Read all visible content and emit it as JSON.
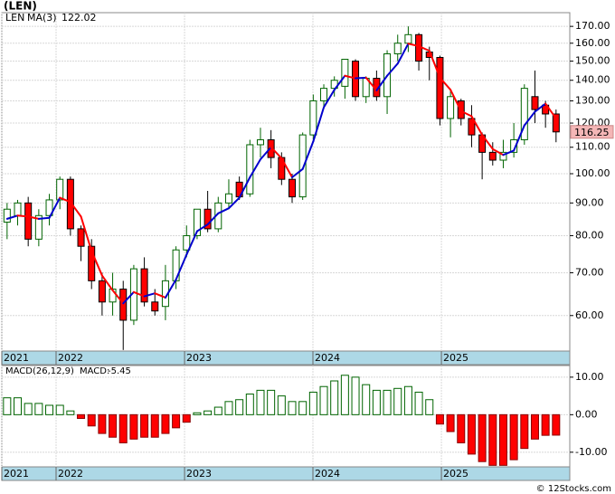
{
  "title": "(LEN)",
  "footer": "© 12Stocks.com",
  "chart_data": [
    {
      "type": "candlestick",
      "symbol": "LEN",
      "ma_name": "MA(3)",
      "x": [
        0,
        1,
        2,
        3,
        4,
        5,
        6,
        7,
        8,
        9,
        10,
        11,
        12,
        13,
        14,
        15,
        16,
        17,
        18,
        19,
        20,
        21,
        22,
        23,
        24,
        25,
        26,
        27,
        28,
        29,
        30,
        31,
        32,
        33,
        34,
        35,
        36,
        37,
        38,
        39,
        40,
        41,
        42,
        43,
        44,
        45,
        46,
        47,
        48,
        49,
        50,
        51,
        52
      ],
      "open": [
        84,
        86,
        90,
        79,
        86,
        91,
        98,
        82,
        77,
        68,
        63,
        66,
        59,
        71,
        63,
        62,
        68,
        76,
        80,
        88,
        82,
        90,
        97,
        93,
        111,
        113,
        106,
        98,
        92,
        115,
        130,
        136,
        137,
        150,
        132,
        141,
        132,
        154,
        160,
        165,
        155,
        152,
        122,
        130,
        122,
        115,
        108,
        105,
        108,
        113,
        132,
        128,
        124
      ],
      "high": [
        90,
        91,
        92,
        88,
        93,
        99,
        99,
        83,
        79,
        70,
        70,
        68,
        72,
        74,
        66,
        72,
        77,
        83,
        88,
        94,
        92,
        98,
        99,
        113,
        118,
        117,
        108,
        100,
        116,
        133,
        138,
        142,
        151,
        151,
        142,
        145,
        156,
        165,
        170,
        166,
        158,
        153,
        135,
        131,
        128,
        116,
        112,
        113,
        120,
        138,
        145,
        130,
        126
      ],
      "low": [
        79,
        83,
        77,
        77,
        83,
        88,
        80,
        73,
        66,
        60,
        60,
        53,
        58,
        62,
        60,
        59,
        66,
        74,
        79,
        81,
        81,
        88,
        91,
        92,
        106,
        102,
        96,
        90,
        91,
        113,
        127,
        132,
        131,
        130,
        129,
        130,
        124,
        150,
        155,
        145,
        140,
        119,
        114,
        119,
        110,
        98,
        103,
        102,
        106,
        111,
        120,
        118,
        112
      ],
      "close": [
        88,
        90,
        79,
        86,
        91,
        98,
        82,
        77,
        68,
        63,
        66,
        59,
        71,
        63,
        61,
        68,
        76,
        80,
        88,
        82,
        90,
        93,
        92,
        111,
        113,
        106,
        98,
        92,
        115,
        130,
        136,
        140,
        151,
        132,
        141,
        132,
        154,
        160,
        165,
        150,
        152,
        122,
        132,
        122,
        115,
        108,
        105,
        108,
        113,
        136,
        126,
        124,
        116.25
      ],
      "ma": [
        85,
        86,
        85.7,
        85,
        85.3,
        91.7,
        90.3,
        85.7,
        75.7,
        69.3,
        65.7,
        62.7,
        65.3,
        64.3,
        65,
        64,
        68.3,
        74.7,
        81.3,
        83.3,
        86.7,
        88.3,
        91.7,
        98.7,
        105.3,
        110,
        105.7,
        98.7,
        101.7,
        112.3,
        127,
        135.3,
        142.3,
        141,
        141.3,
        135,
        142.3,
        148.7,
        159.7,
        158.3,
        155.7,
        141.3,
        135.3,
        125.3,
        123,
        115,
        109.3,
        107,
        108.7,
        119,
        125,
        128.7,
        122.02
      ],
      "up_color": "#006400",
      "down_color": "#ff0000",
      "ma_up_color": "#0000cc",
      "ma_down_color": "#ff0000",
      "log_scale": true,
      "xlim": [
        -0.5,
        53.3
      ],
      "ylim": [
        52.8,
        178.6
      ],
      "yticks": [
        {
          "value": 60,
          "label": "60.00"
        },
        {
          "value": 70,
          "label": "70.00"
        },
        {
          "value": 80,
          "label": "80.00"
        },
        {
          "value": 90,
          "label": "90.00"
        },
        {
          "value": 100,
          "label": "100.00"
        },
        {
          "value": 110,
          "label": "110.00"
        },
        {
          "value": 120,
          "label": "120.00"
        },
        {
          "value": 130,
          "label": "130.00"
        },
        {
          "value": 140,
          "label": "140.00"
        },
        {
          "value": 150,
          "label": "150.00"
        },
        {
          "value": 160,
          "label": "160.00"
        },
        {
          "value": 170,
          "label": "170.00"
        }
      ],
      "xticks": [
        {
          "value": -0.5,
          "label": "2021"
        },
        {
          "value": 4.64,
          "label": "2022"
        },
        {
          "value": 16.81,
          "label": "2023"
        },
        {
          "value": 28.97,
          "label": "2024"
        },
        {
          "value": 41.14,
          "label": "2025"
        }
      ],
      "grid": true
    },
    {
      "type": "bar",
      "name": "MACD(26,12,9)",
      "value_prefix": "MACD:",
      "x": [
        0,
        1,
        2,
        3,
        4,
        5,
        6,
        7,
        8,
        9,
        10,
        11,
        12,
        13,
        14,
        15,
        16,
        17,
        18,
        19,
        20,
        21,
        22,
        23,
        24,
        25,
        26,
        27,
        28,
        29,
        30,
        31,
        32,
        33,
        34,
        35,
        36,
        37,
        38,
        39,
        40,
        41,
        42,
        43,
        44,
        45,
        46,
        47,
        48,
        49,
        50,
        51,
        52
      ],
      "values": [
        4.5,
        4.5,
        3,
        3,
        2.5,
        2.5,
        1,
        -1,
        -3,
        -5,
        -6,
        -7.5,
        -6.5,
        -6,
        -6,
        -5,
        -3.5,
        -2,
        0.5,
        1,
        2,
        3.5,
        4,
        5.5,
        6.5,
        6.5,
        5,
        3.5,
        3.5,
        6,
        7.5,
        9,
        10.5,
        10,
        8,
        6.5,
        6.5,
        7,
        7.5,
        6,
        4,
        -2.5,
        -4.5,
        -7.5,
        -10.5,
        -12.5,
        -13.5,
        -13.5,
        -12,
        -9,
        -6.5,
        -5.5,
        -5.45
      ],
      "up_color": "#006400",
      "down_color": "#ff0000",
      "xlim": [
        -0.5,
        53.3
      ],
      "ylim": [
        -13.9,
        13.1
      ],
      "yticks": [
        {
          "value": -10,
          "label": "-10.00"
        },
        {
          "value": 0,
          "label": "0.00"
        },
        {
          "value": 10,
          "label": "10.00"
        }
      ],
      "xticks": [
        {
          "value": -0.5,
          "label": "2021"
        },
        {
          "value": 4.64,
          "label": "2022"
        },
        {
          "value": 16.81,
          "label": "2023"
        },
        {
          "value": 28.97,
          "label": "2024"
        },
        {
          "value": 41.14,
          "label": "2025"
        }
      ],
      "grid": true
    }
  ]
}
